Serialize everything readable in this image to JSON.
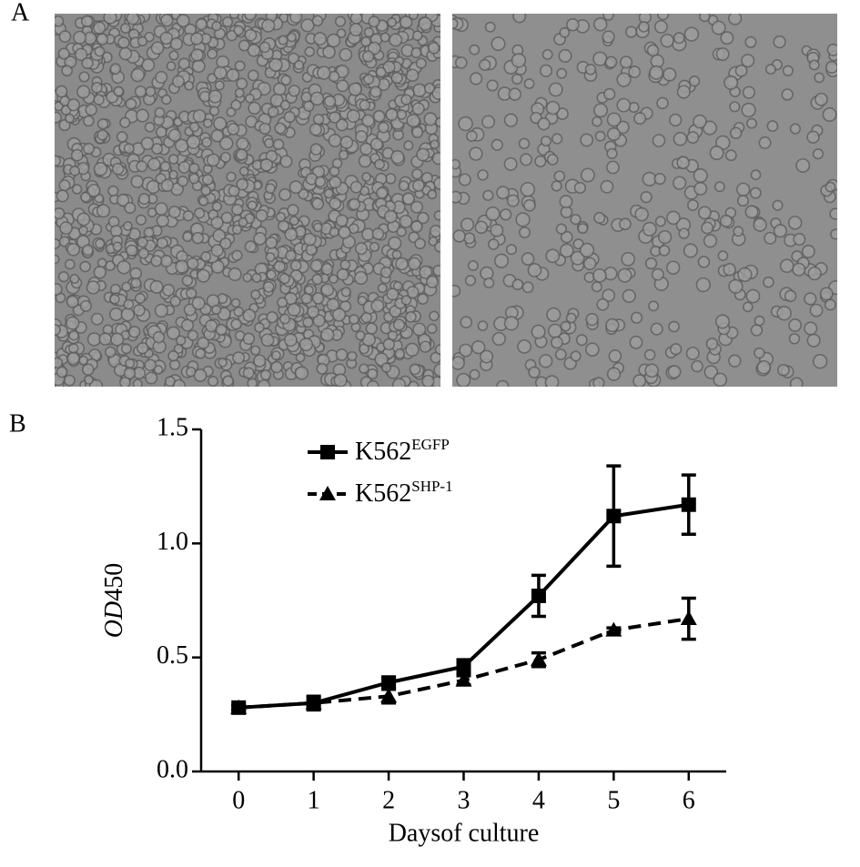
{
  "panel_labels": [
    "A",
    "B"
  ],
  "chart_data": {
    "type": "line",
    "x": [
      0,
      1,
      2,
      3,
      4,
      5,
      6
    ],
    "xlim": [
      -0.5,
      6.5
    ],
    "xticks": [
      0,
      1,
      2,
      3,
      4,
      5,
      6
    ],
    "ylim": [
      0,
      1.5
    ],
    "yticks": [
      {
        "value": 0,
        "label": "0.0"
      },
      0.5,
      {
        "value": 1,
        "label": "1.0"
      },
      1.5
    ],
    "xlabel": "Daysof culture",
    "ylabel": {
      "italic": "OD",
      "plain": "450"
    },
    "series": [
      {
        "name": "K562",
        "name_sup": "EGFP",
        "color": "#000000",
        "marker": "square",
        "dashed": false,
        "values": [
          0.28,
          0.3,
          0.39,
          0.46,
          0.77,
          1.12,
          1.17
        ],
        "errors": [
          0.01,
          0.03,
          0.02,
          0.03,
          0.09,
          0.22,
          0.13
        ]
      },
      {
        "name": "K562",
        "name_sup": "SHP-1",
        "color": "#000000",
        "marker": "triangle",
        "dashed": true,
        "values": [
          0.28,
          0.3,
          0.33,
          0.4,
          0.49,
          0.62,
          0.67
        ],
        "errors": [
          0.01,
          0.01,
          0.03,
          0.02,
          0.03,
          0.01,
          0.09
        ]
      }
    ]
  }
}
